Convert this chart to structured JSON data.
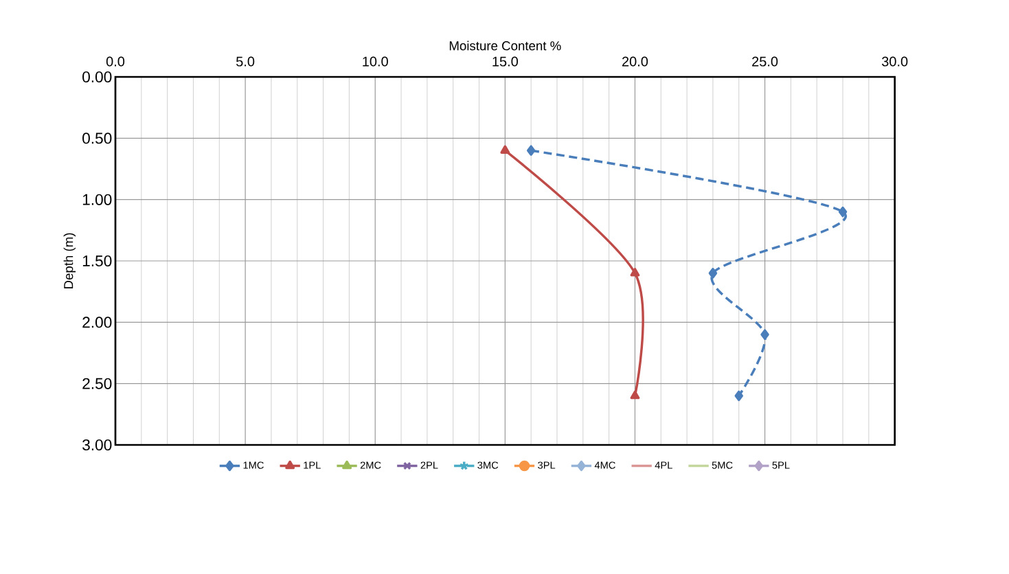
{
  "chart_data": {
    "type": "line",
    "xlabel": "Moisture Content %",
    "ylabel": "Depth (m)",
    "xlim": [
      0,
      30
    ],
    "ylim": [
      3,
      0
    ],
    "xticks": [
      {
        "value": 0,
        "label": "0.0"
      },
      {
        "value": 5,
        "label": "5.0"
      },
      {
        "value": 10,
        "label": "10.0"
      },
      {
        "value": 15,
        "label": "15.0"
      },
      {
        "value": 20,
        "label": "20.0"
      },
      {
        "value": 25,
        "label": "25.0"
      },
      {
        "value": 30,
        "label": "30.0"
      }
    ],
    "yticks": [
      {
        "value": 0,
        "label": "0.00"
      },
      {
        "value": 0.5,
        "label": "0.50"
      },
      {
        "value": 1,
        "label": "1.00"
      },
      {
        "value": 1.5,
        "label": "1.50"
      },
      {
        "value": 2,
        "label": "2.00"
      },
      {
        "value": 2.5,
        "label": "2.50"
      },
      {
        "value": 3,
        "label": "3.00"
      }
    ],
    "grid": true,
    "legend": "bottom",
    "series": [
      {
        "name": "1MC",
        "color": "#4a7ebb",
        "marker": "diamond",
        "line_style": "dashed",
        "x": [
          16,
          28,
          23,
          25,
          24
        ],
        "values": [
          0.6,
          1.1,
          1.6,
          2.1,
          2.6
        ]
      },
      {
        "name": "1PL",
        "color": "#be4b48",
        "marker": "triangle",
        "line_style": "solid",
        "x": [
          15,
          20,
          20
        ],
        "values": [
          0.6,
          1.6,
          2.6
        ]
      },
      {
        "name": "2MC",
        "color": "#9bbb59",
        "marker": "triangle",
        "line_style": "dashed"
      },
      {
        "name": "2PL",
        "color": "#8064a2",
        "marker": "cross",
        "line_style": "solid"
      },
      {
        "name": "3MC",
        "color": "#4bacc6",
        "marker": "star",
        "line_style": "dashed"
      },
      {
        "name": "3PL",
        "color": "#f79646",
        "marker": "circle",
        "line_style": "solid"
      },
      {
        "name": "4MC",
        "color": "#95b3d7",
        "marker": "diamond",
        "line_style": "solid"
      },
      {
        "name": "4PL",
        "color": "#d99694",
        "marker": "none",
        "line_style": "solid"
      },
      {
        "name": "5MC",
        "color": "#c3d69b",
        "marker": "none",
        "line_style": "solid"
      },
      {
        "name": "5PL",
        "color": "#b3a2c7",
        "marker": "diamond",
        "line_style": "solid"
      }
    ]
  }
}
